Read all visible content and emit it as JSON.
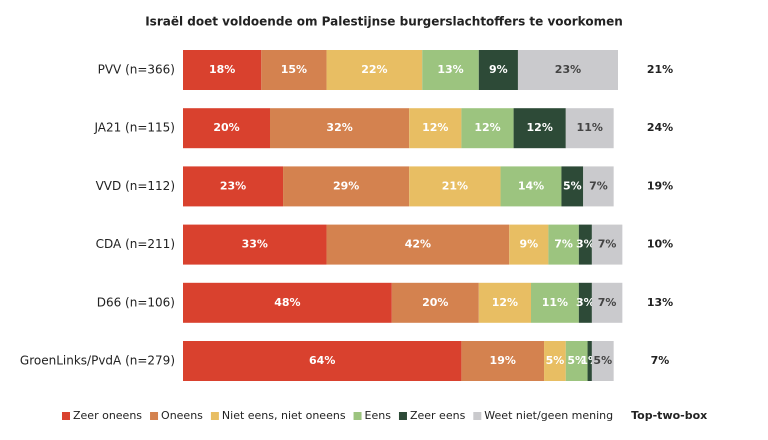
{
  "chart_data": {
    "type": "stacked-bar",
    "orientation": "horizontal",
    "title": "Israël doet voldoende om Palestijnse burgerslachtoffers te voorkomen",
    "categories": [
      "PVV (n=366)",
      "JA21 (n=115)",
      "VVD (n=112)",
      "CDA (n=211)",
      "D66 (n=106)",
      "GroenLinks/PvdA (n=279)"
    ],
    "xlim": [
      0,
      100
    ],
    "series": [
      {
        "name": "Zeer oneens",
        "color": "#d9412e",
        "label_color": "#ffffff",
        "values": [
          18,
          20,
          23,
          33,
          48,
          64
        ],
        "value_labels": [
          "18%",
          "20%",
          "23%",
          "33%",
          "48%",
          "64%"
        ]
      },
      {
        "name": "Oneens",
        "color": "#d4824f",
        "label_color": "#ffffff",
        "values": [
          15,
          32,
          29,
          42,
          20,
          19
        ],
        "value_labels": [
          "15%",
          "32%",
          "29%",
          "42%",
          "20%",
          "19%"
        ]
      },
      {
        "name": "Niet eens, niet oneens",
        "color": "#e8be63",
        "label_color": "#ffffff",
        "values": [
          22,
          12,
          21,
          9,
          12,
          5
        ],
        "value_labels": [
          "22%",
          "12%",
          "21%",
          "9%",
          "12%",
          "5%"
        ]
      },
      {
        "name": "Eens",
        "color": "#9cc47f",
        "label_color": "#ffffff",
        "values": [
          13,
          12,
          14,
          7,
          11,
          5
        ],
        "value_labels": [
          "13%",
          "12%",
          "14%",
          "7%",
          "11%",
          "5%"
        ]
      },
      {
        "name": "Zeer eens",
        "color": "#2d4a37",
        "label_color": "#ffffff",
        "values": [
          9,
          12,
          5,
          3,
          3,
          1
        ],
        "value_labels": [
          "9%",
          "12%",
          "5%",
          "3%",
          "3%",
          "1%"
        ]
      },
      {
        "name": "Weet niet/geen mening",
        "color": "#cacacd",
        "label_color": "#444444",
        "values": [
          23,
          11,
          7,
          7,
          7,
          5
        ],
        "value_labels": [
          "23%",
          "11%",
          "7%",
          "7%",
          "7%",
          "5%"
        ]
      }
    ],
    "top_two_box": {
      "name": "Top-two-box",
      "values": [
        21,
        24,
        19,
        10,
        13,
        7
      ],
      "value_labels": [
        "21%",
        "24%",
        "19%",
        "10%",
        "13%",
        "7%"
      ]
    }
  }
}
